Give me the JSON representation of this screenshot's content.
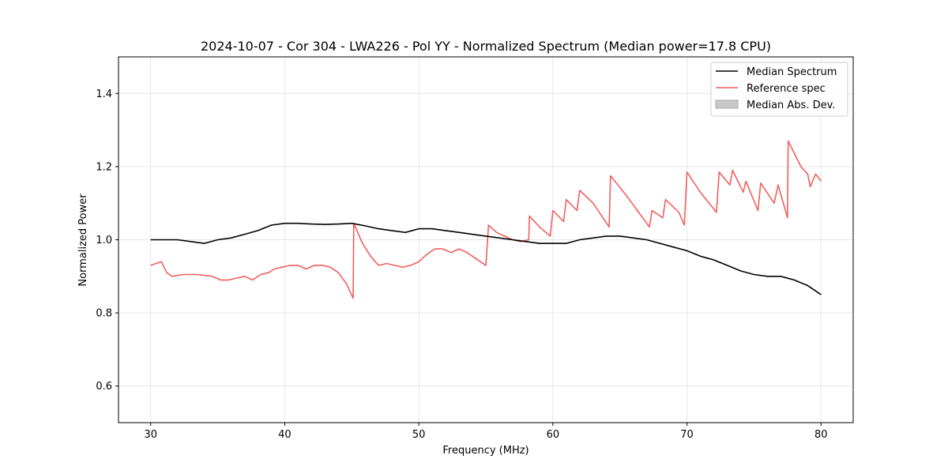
{
  "chart_data": {
    "type": "line",
    "title": "2024-10-07 - Cor 304 - LWA226 - Pol YY - Normalized Spectrum (Median power=17.8 CPU)",
    "xlabel": "Frequency (MHz)",
    "ylabel": "Normalized Power",
    "xlim": [
      27.6,
      82.4
    ],
    "ylim": [
      0.5,
      1.5
    ],
    "xticks": [
      30,
      40,
      50,
      60,
      70,
      80
    ],
    "yticks": [
      0.6,
      0.8,
      1.0,
      1.2,
      1.4
    ],
    "xtick_labels": [
      "30",
      "40",
      "50",
      "60",
      "70",
      "80"
    ],
    "ytick_labels": [
      "0.6",
      "0.8",
      "1.0",
      "1.2",
      "1.4"
    ],
    "grid": true,
    "legend_position": "top-right",
    "legend": [
      "Median Spectrum",
      "Reference spec",
      "Median Abs. Dev."
    ],
    "series": [
      {
        "name": "Median Spectrum",
        "color": "#000000",
        "x": [
          30,
          31,
          32,
          33,
          34,
          35,
          36,
          37,
          38,
          39,
          40,
          41,
          42,
          43,
          44,
          45,
          46,
          47,
          48,
          49,
          50,
          51,
          52,
          53,
          54,
          55,
          56,
          57,
          58,
          59,
          60,
          61,
          62,
          63,
          64,
          65,
          66,
          67,
          68,
          69,
          70,
          71,
          72,
          73,
          74,
          75,
          76,
          77,
          78,
          79,
          80
        ],
        "values": [
          1.0,
          1.0,
          1.0,
          0.995,
          0.99,
          1.0,
          1.005,
          1.015,
          1.025,
          1.04,
          1.045,
          1.045,
          1.043,
          1.042,
          1.043,
          1.045,
          1.038,
          1.03,
          1.025,
          1.02,
          1.03,
          1.03,
          1.025,
          1.02,
          1.015,
          1.01,
          1.005,
          1.0,
          0.995,
          0.99,
          0.99,
          0.99,
          1.0,
          1.005,
          1.01,
          1.01,
          1.005,
          1.0,
          0.99,
          0.98,
          0.97,
          0.955,
          0.945,
          0.93,
          0.915,
          0.905,
          0.9,
          0.9,
          0.89,
          0.875,
          0.85
        ]
      },
      {
        "name": "Reference spec",
        "color": "#f15f5f",
        "x": [
          30,
          30.8,
          31.2,
          31.6,
          32.4,
          33.5,
          34.6,
          35.2,
          35.8,
          36.4,
          37.0,
          37.6,
          38.2,
          38.8,
          39.2,
          39.8,
          40.4,
          41.0,
          41.6,
          42.2,
          42.8,
          43.4,
          44.0,
          44.6,
          45.1,
          45.15,
          45.8,
          46.4,
          47.0,
          47.6,
          48.2,
          48.8,
          49.4,
          50.0,
          50.6,
          51.2,
          51.8,
          52.4,
          53.0,
          53.6,
          54.2,
          55.0,
          55.2,
          55.8,
          56.4,
          57.0,
          57.6,
          58.2,
          58.25,
          59.0,
          59.8,
          60.0,
          60.8,
          61.0,
          61.8,
          62.0,
          63.0,
          64.2,
          64.3,
          65.5,
          66.5,
          67.2,
          67.4,
          68.2,
          68.4,
          69.4,
          69.8,
          70.0,
          71.0,
          72.2,
          72.4,
          73.2,
          73.4,
          74.2,
          74.4,
          75.3,
          75.5,
          76.5,
          76.8,
          77.5,
          77.55,
          78.5,
          79.0,
          79.2,
          79.6,
          80.0
        ],
        "values": [
          0.93,
          0.94,
          0.91,
          0.9,
          0.905,
          0.905,
          0.9,
          0.89,
          0.89,
          0.895,
          0.9,
          0.89,
          0.905,
          0.91,
          0.92,
          0.925,
          0.93,
          0.93,
          0.92,
          0.93,
          0.93,
          0.925,
          0.91,
          0.88,
          0.84,
          1.045,
          0.99,
          0.955,
          0.93,
          0.935,
          0.93,
          0.925,
          0.93,
          0.94,
          0.96,
          0.975,
          0.975,
          0.965,
          0.975,
          0.965,
          0.95,
          0.93,
          1.04,
          1.02,
          1.01,
          1.0,
          0.995,
          1.0,
          1.065,
          1.035,
          1.01,
          1.08,
          1.05,
          1.11,
          1.08,
          1.135,
          1.1,
          1.035,
          1.175,
          1.12,
          1.07,
          1.035,
          1.08,
          1.06,
          1.11,
          1.075,
          1.04,
          1.185,
          1.13,
          1.075,
          1.185,
          1.15,
          1.19,
          1.13,
          1.16,
          1.08,
          1.155,
          1.1,
          1.15,
          1.06,
          1.27,
          1.2,
          1.18,
          1.145,
          1.18,
          1.16
        ]
      }
    ]
  }
}
